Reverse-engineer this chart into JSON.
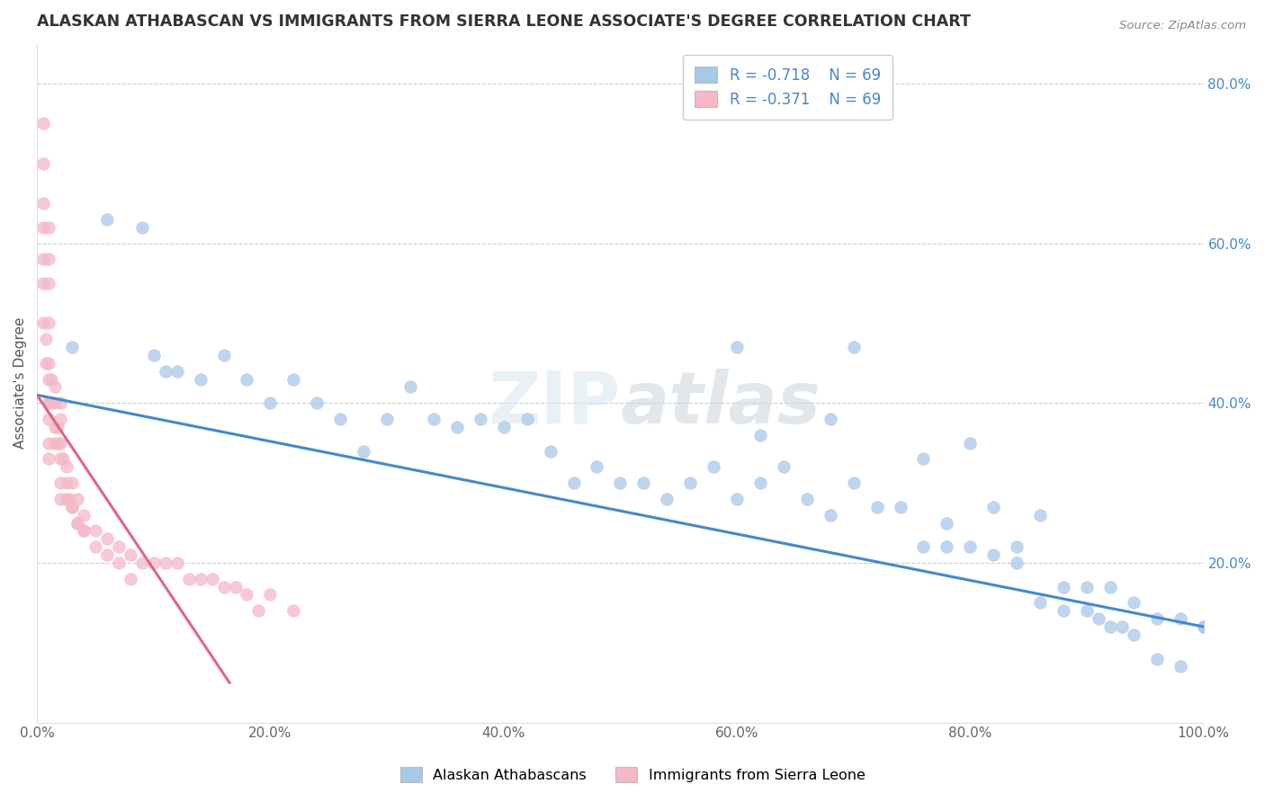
{
  "title": "ALASKAN ATHABASCAN VS IMMIGRANTS FROM SIERRA LEONE ASSOCIATE'S DEGREE CORRELATION CHART",
  "source": "Source: ZipAtlas.com",
  "ylabel": "Associate's Degree",
  "legend_label1": "Alaskan Athabascans",
  "legend_label2": "Immigrants from Sierra Leone",
  "legend_r1": "R = -0.718",
  "legend_n1": "N = 69",
  "legend_r2": "R = -0.371",
  "legend_n2": "N = 69",
  "color_blue": "#a8c8e8",
  "color_pink": "#f4b8c8",
  "color_blue_line": "#4488cc",
  "color_pink_line": "#dd6688",
  "background_color": "#ffffff",
  "xlim": [
    0.0,
    1.0
  ],
  "ylim": [
    0.0,
    0.85
  ],
  "x_ticks": [
    0.0,
    0.2,
    0.4,
    0.6,
    0.8,
    1.0
  ],
  "x_tick_labels": [
    "0.0%",
    "20.0%",
    "40.0%",
    "60.0%",
    "80.0%",
    "100.0%"
  ],
  "y_ticks_right": [
    0.2,
    0.4,
    0.6,
    0.8
  ],
  "y_tick_labels_right": [
    "20.0%",
    "40.0%",
    "60.0%",
    "80.0%"
  ],
  "blue_line_x": [
    0.0,
    1.0
  ],
  "blue_line_y": [
    0.41,
    0.12
  ],
  "pink_line_x": [
    0.0,
    0.165
  ],
  "pink_line_y": [
    0.41,
    0.05
  ],
  "blue_x": [
    0.03,
    0.06,
    0.09,
    0.1,
    0.11,
    0.12,
    0.14,
    0.16,
    0.18,
    0.2,
    0.22,
    0.24,
    0.26,
    0.28,
    0.3,
    0.32,
    0.34,
    0.36,
    0.38,
    0.4,
    0.42,
    0.44,
    0.46,
    0.48,
    0.5,
    0.52,
    0.54,
    0.56,
    0.58,
    0.6,
    0.62,
    0.64,
    0.66,
    0.68,
    0.7,
    0.72,
    0.74,
    0.76,
    0.78,
    0.8,
    0.82,
    0.84,
    0.86,
    0.88,
    0.9,
    0.92,
    0.94,
    0.96,
    0.98,
    1.0,
    0.6,
    0.62,
    0.68,
    0.7,
    0.76,
    0.78,
    0.8,
    0.82,
    0.84,
    0.86,
    0.88,
    0.9,
    0.91,
    0.92,
    0.93,
    0.94,
    0.96,
    0.98,
    1.0
  ],
  "blue_y": [
    0.47,
    0.63,
    0.62,
    0.46,
    0.44,
    0.44,
    0.43,
    0.46,
    0.43,
    0.4,
    0.43,
    0.4,
    0.38,
    0.34,
    0.38,
    0.42,
    0.38,
    0.37,
    0.38,
    0.37,
    0.38,
    0.34,
    0.3,
    0.32,
    0.3,
    0.3,
    0.28,
    0.3,
    0.32,
    0.28,
    0.3,
    0.32,
    0.28,
    0.26,
    0.3,
    0.27,
    0.27,
    0.22,
    0.22,
    0.22,
    0.27,
    0.22,
    0.26,
    0.17,
    0.17,
    0.17,
    0.15,
    0.13,
    0.13,
    0.12,
    0.47,
    0.36,
    0.38,
    0.47,
    0.33,
    0.25,
    0.35,
    0.21,
    0.2,
    0.15,
    0.14,
    0.14,
    0.13,
    0.12,
    0.12,
    0.11,
    0.08,
    0.07,
    0.12
  ],
  "pink_x": [
    0.005,
    0.005,
    0.005,
    0.005,
    0.005,
    0.005,
    0.005,
    0.01,
    0.01,
    0.01,
    0.01,
    0.01,
    0.01,
    0.01,
    0.01,
    0.01,
    0.01,
    0.01,
    0.015,
    0.015,
    0.015,
    0.015,
    0.02,
    0.02,
    0.02,
    0.02,
    0.02,
    0.02,
    0.025,
    0.025,
    0.03,
    0.03,
    0.035,
    0.035,
    0.04,
    0.04,
    0.05,
    0.05,
    0.06,
    0.06,
    0.07,
    0.07,
    0.08,
    0.08,
    0.09,
    0.1,
    0.11,
    0.12,
    0.13,
    0.14,
    0.15,
    0.16,
    0.17,
    0.18,
    0.19,
    0.2,
    0.22,
    0.008,
    0.008,
    0.012,
    0.012,
    0.018,
    0.018,
    0.022,
    0.025,
    0.028,
    0.03,
    0.035,
    0.04
  ],
  "pink_y": [
    0.75,
    0.7,
    0.65,
    0.62,
    0.58,
    0.55,
    0.5,
    0.62,
    0.58,
    0.55,
    0.5,
    0.45,
    0.43,
    0.4,
    0.4,
    0.38,
    0.35,
    0.33,
    0.42,
    0.4,
    0.37,
    0.35,
    0.4,
    0.38,
    0.35,
    0.33,
    0.3,
    0.28,
    0.32,
    0.28,
    0.3,
    0.27,
    0.28,
    0.25,
    0.26,
    0.24,
    0.24,
    0.22,
    0.23,
    0.21,
    0.22,
    0.2,
    0.21,
    0.18,
    0.2,
    0.2,
    0.2,
    0.2,
    0.18,
    0.18,
    0.18,
    0.17,
    0.17,
    0.16,
    0.14,
    0.16,
    0.14,
    0.48,
    0.45,
    0.43,
    0.4,
    0.37,
    0.35,
    0.33,
    0.3,
    0.28,
    0.27,
    0.25,
    0.24
  ]
}
